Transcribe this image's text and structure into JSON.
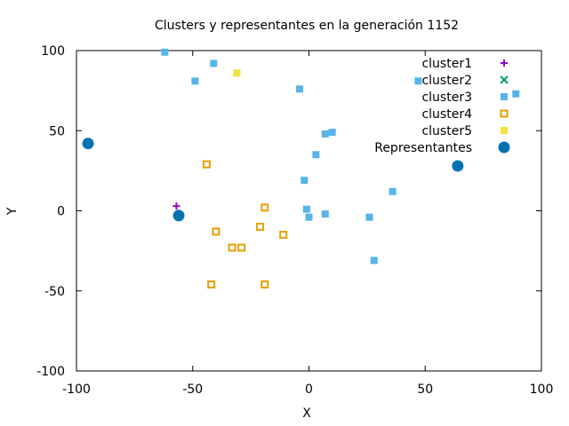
{
  "chart_data": {
    "type": "scatter",
    "title": "Clusters y representantes en la generación 1152",
    "xlabel": "X",
    "ylabel": "Y",
    "xlim": [
      -100,
      100
    ],
    "ylim": [
      -100,
      100
    ],
    "xticks": [
      -100,
      -50,
      0,
      50,
      100
    ],
    "yticks": [
      -100,
      -50,
      0,
      50,
      100
    ],
    "xtick_labels": [
      "-100",
      "-50",
      "0",
      "50",
      "100"
    ],
    "ytick_labels": [
      "-100",
      "-50",
      "0",
      "50",
      "100"
    ],
    "grid": false,
    "legend_position": "top-right",
    "series": [
      {
        "name": "cluster1",
        "marker": "plus",
        "color": "#9400d3",
        "points": [
          [
            -57,
            3
          ]
        ]
      },
      {
        "name": "cluster2",
        "marker": "cross",
        "color": "#009e73",
        "points": []
      },
      {
        "name": "cluster3",
        "marker": "square-filled",
        "color": "#56b4e9",
        "points": [
          [
            -62,
            99
          ],
          [
            -41,
            92
          ],
          [
            -49,
            81
          ],
          [
            -4,
            76
          ],
          [
            47,
            81
          ],
          [
            89,
            73
          ],
          [
            7,
            48
          ],
          [
            10,
            49
          ],
          [
            3,
            35
          ],
          [
            -2,
            19
          ],
          [
            36,
            12
          ],
          [
            -1,
            1
          ],
          [
            0,
            -4
          ],
          [
            7,
            -2
          ],
          [
            26,
            -4
          ],
          [
            28,
            -31
          ]
        ]
      },
      {
        "name": "cluster4",
        "marker": "square-open",
        "color": "#e69f00",
        "points": [
          [
            -44,
            29
          ],
          [
            -19,
            2
          ],
          [
            -40,
            -13
          ],
          [
            -21,
            -10
          ],
          [
            -11,
            -15
          ],
          [
            -33,
            -23
          ],
          [
            -29,
            -23
          ],
          [
            -42,
            -46
          ],
          [
            -19,
            -46
          ]
        ]
      },
      {
        "name": "cluster5",
        "marker": "square-filled",
        "color": "#f0e442",
        "points": [
          [
            -31,
            86
          ]
        ]
      },
      {
        "name": "Representantes",
        "marker": "circle-filled",
        "color": "#0072b2",
        "points": [
          [
            -95,
            42
          ],
          [
            -56,
            -3
          ],
          [
            64,
            28
          ]
        ]
      }
    ]
  }
}
